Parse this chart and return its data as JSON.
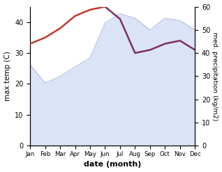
{
  "months": [
    "Jan",
    "Feb",
    "Mar",
    "Apr",
    "May",
    "Jun",
    "Jul",
    "Aug",
    "Sep",
    "Oct",
    "Nov",
    "Dec"
  ],
  "month_indices": [
    0,
    1,
    2,
    3,
    4,
    5,
    6,
    7,
    8,
    9,
    10,
    11
  ],
  "temp": [
    33,
    35,
    38,
    42,
    44,
    45,
    41,
    30,
    31,
    33,
    34,
    31
  ],
  "precip": [
    35,
    27,
    30,
    34,
    38,
    53,
    57,
    55,
    50,
    55,
    54,
    50
  ],
  "temp_color": "#c0392b",
  "precip_fill_color": "#b8c8ee",
  "precip_line_color": "#8898cc",
  "temp_line_color_late": "#7b3060",
  "ylim_left": [
    0,
    45
  ],
  "ylim_right": [
    0,
    60
  ],
  "xlabel": "date (month)",
  "ylabel_left": "max temp (C)",
  "ylabel_right": "med. precipitation (kg/m2)",
  "bg_color": "#ffffff",
  "temp_split_idx": 5,
  "left_yticks": [
    0,
    10,
    20,
    30,
    40
  ],
  "right_yticks": [
    0,
    10,
    20,
    30,
    40,
    50,
    60
  ]
}
